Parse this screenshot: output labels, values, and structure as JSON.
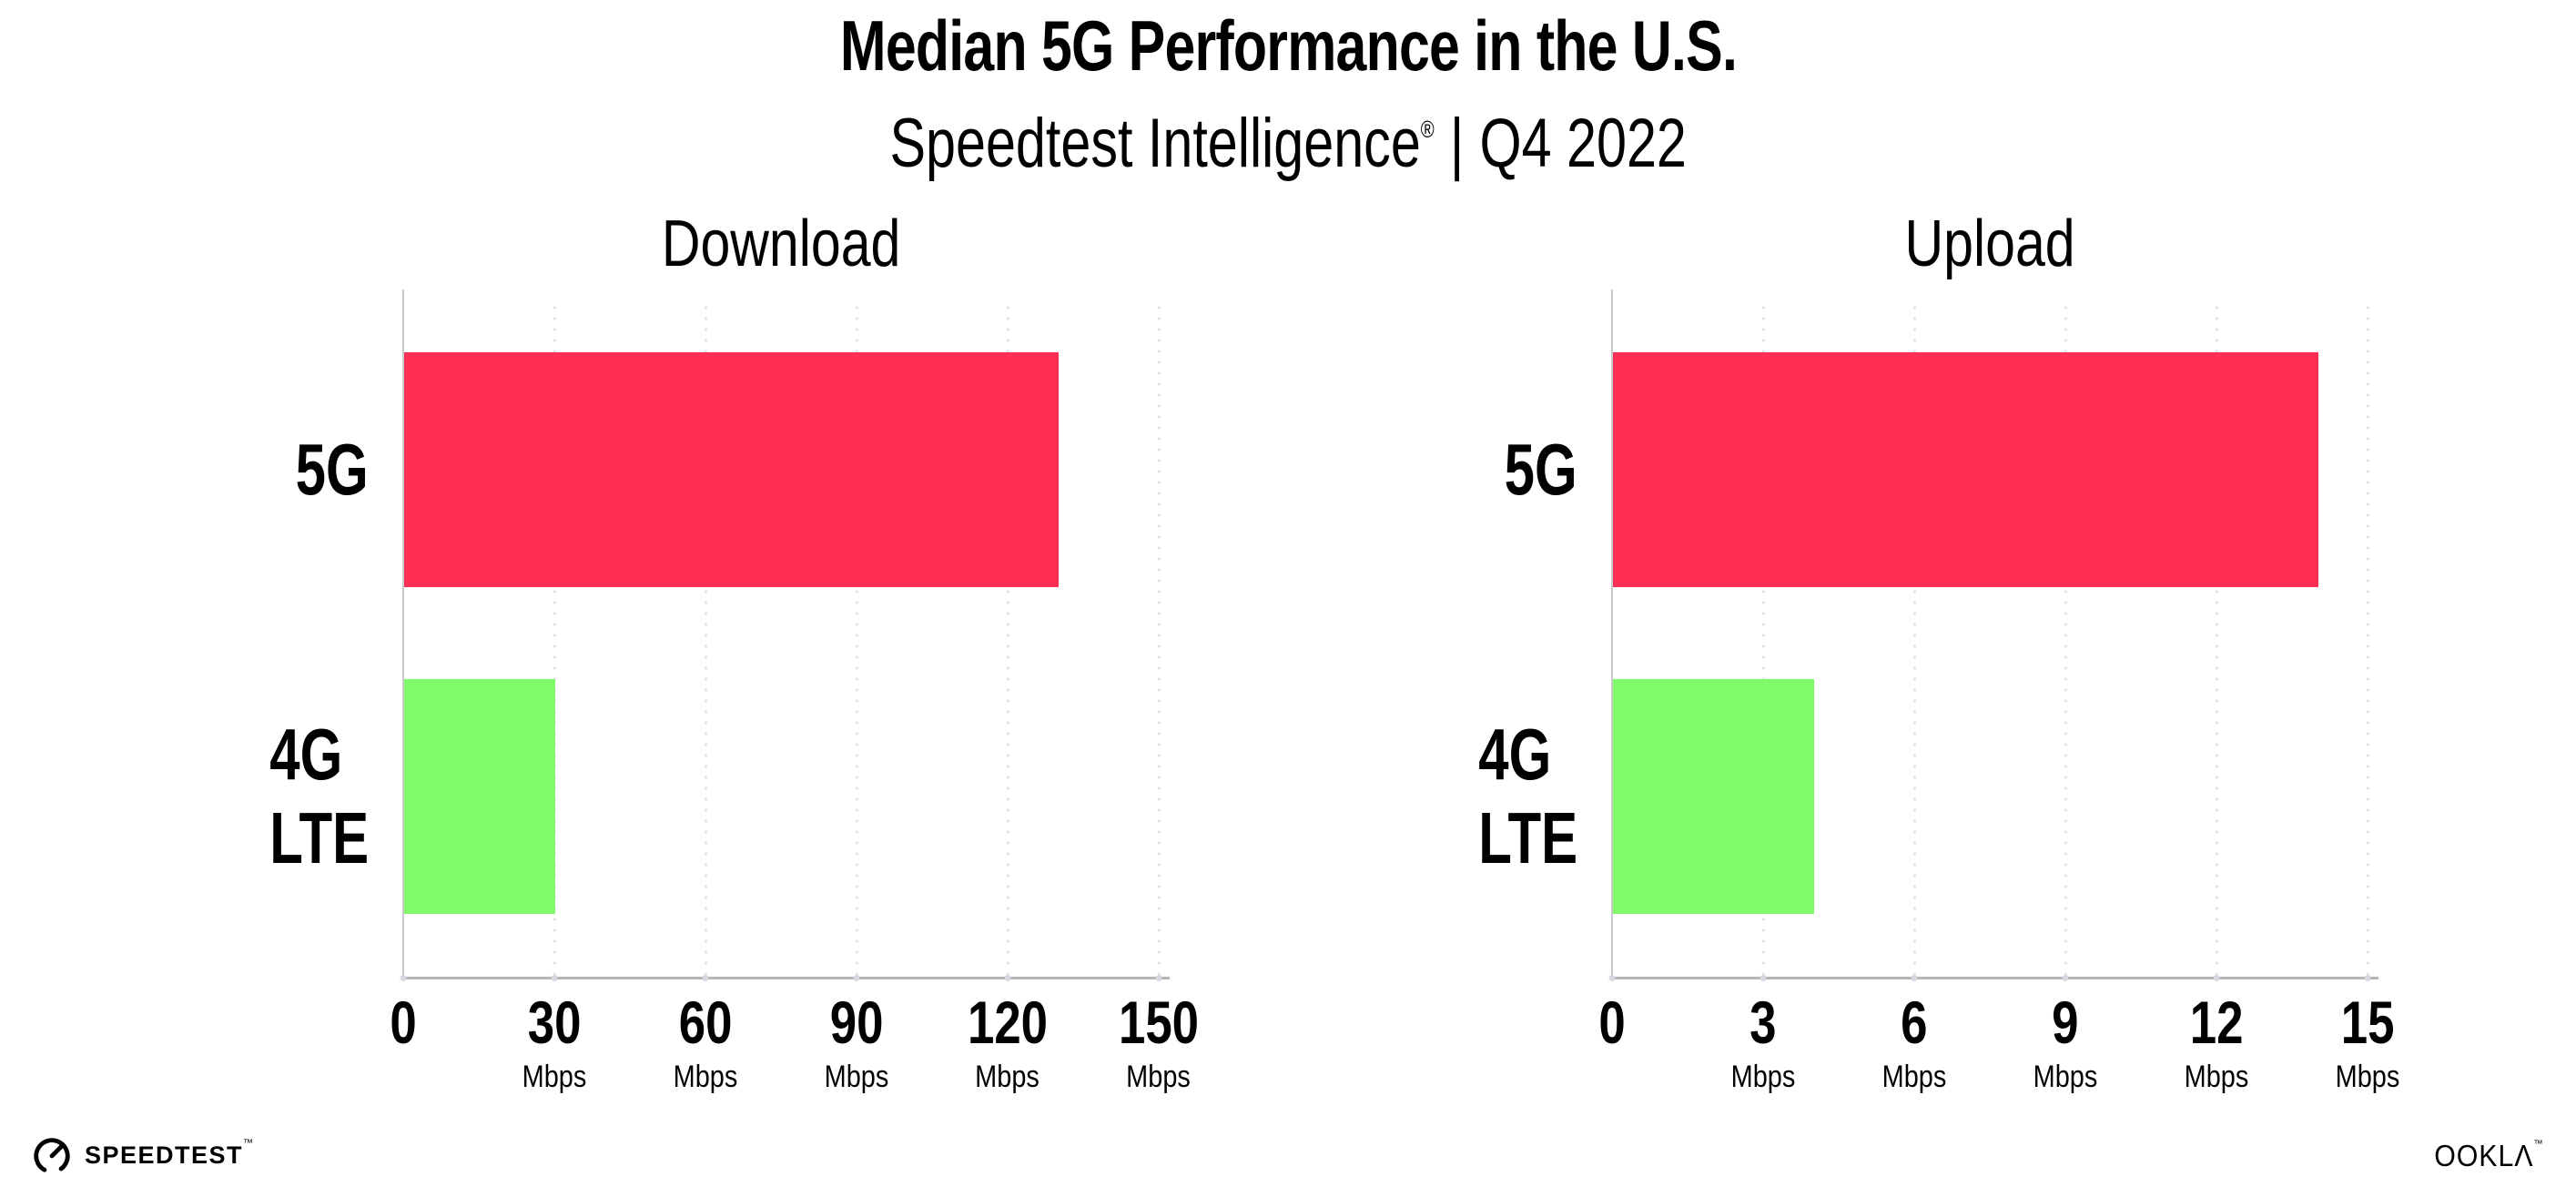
{
  "title": "Median 5G Performance in the U.S.",
  "subtitle": {
    "brand": "Speedtest Intelligence",
    "reg": "®",
    "divider": "|",
    "period": "Q4 2022"
  },
  "colors": {
    "bar_5g": "#ff2e55",
    "bar_4g_lte": "#80fa6b",
    "grid_dot": "#e3e3f0",
    "y_axis_line": "#c9c9c9",
    "x_axis_line": "#b4b4b4",
    "text": "#000000"
  },
  "chart_data": [
    {
      "type": "bar",
      "orientation": "horizontal",
      "title": "Download",
      "categories": [
        "5G",
        "4G LTE"
      ],
      "values": [
        130,
        30
      ],
      "unit": "Mbps",
      "xlim": [
        0,
        150
      ],
      "xticks": [
        0,
        30,
        60,
        90,
        120,
        150
      ],
      "tick_unit": "Mbps",
      "bar_colors": [
        "#ff2e55",
        "#80fa6b"
      ],
      "grid": "vertical-dotted",
      "legend": "none"
    },
    {
      "type": "bar",
      "orientation": "horizontal",
      "title": "Upload",
      "categories": [
        "5G",
        "4G LTE"
      ],
      "values": [
        14,
        4
      ],
      "unit": "Mbps",
      "xlim": [
        0,
        15
      ],
      "xticks": [
        0,
        3,
        6,
        9,
        12,
        15
      ],
      "tick_unit": "Mbps",
      "bar_colors": [
        "#ff2e55",
        "#80fa6b"
      ],
      "grid": "vertical-dotted",
      "legend": "none"
    }
  ],
  "footer": {
    "speedtest_label": "SPEEDTEST",
    "speedtest_tm": "™",
    "ookla_label": "OOKLΛ",
    "ookla_tm": "™"
  }
}
